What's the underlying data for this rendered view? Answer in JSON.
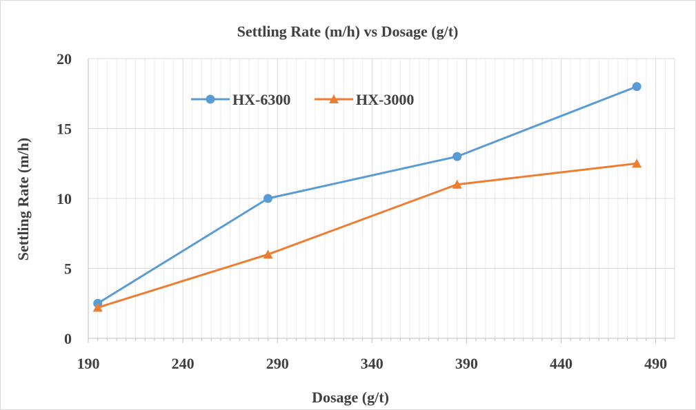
{
  "chart_data": {
    "type": "line",
    "title": "Settling Rate (m/h) vs Dosage (g/t)",
    "xlabel": "Dosage (g/t)",
    "ylabel": "Settling Rate (m/h)",
    "xlim": [
      190,
      500
    ],
    "ylim": [
      0,
      20
    ],
    "x_ticks": [
      190,
      240,
      290,
      340,
      390,
      440,
      490
    ],
    "y_ticks": [
      0,
      5,
      10,
      15,
      20
    ],
    "x_minor_step": 5,
    "grid": true,
    "legend_position": "top-left",
    "series": [
      {
        "name": "HX-6300",
        "color": "#5b9bd5",
        "marker": "circle",
        "x": [
          195,
          285,
          385,
          480
        ],
        "y": [
          2.5,
          10,
          13,
          18
        ]
      },
      {
        "name": "HX-3000",
        "color": "#ed7d31",
        "marker": "triangle",
        "x": [
          195,
          285,
          385,
          480
        ],
        "y": [
          2.2,
          6,
          11,
          12.5
        ]
      }
    ]
  }
}
